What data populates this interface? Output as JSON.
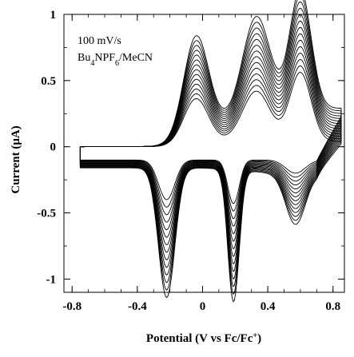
{
  "chart_data": {
    "type": "line",
    "title": "",
    "xlabel": "Potential (V vs Fc/Fc⁺)",
    "ylabel": "Current (μA)",
    "xlim": [
      -0.85,
      0.87
    ],
    "ylim": [
      -1.1,
      1.0
    ],
    "x_ticks": [
      -0.8,
      -0.4,
      0,
      0.4,
      0.8
    ],
    "x_tick_labels": [
      "-0.8",
      "-0.4",
      "0",
      "0.4",
      "0.8"
    ],
    "y_ticks": [
      -1,
      -0.5,
      0,
      0.5,
      1
    ],
    "y_tick_labels": [
      "-1",
      "-0.5",
      "0",
      "0.5",
      "1"
    ],
    "annotations": [
      "100 mV/s",
      "Bu4NPF6/MeCN"
    ],
    "grid": false,
    "legend": "none",
    "series_count": 14,
    "peaks": {
      "anodic": [
        {
          "potential": -0.04,
          "current_first_scan": 0.33,
          "current_last_scan": 0.68
        },
        {
          "potential": 0.33,
          "current_first_scan": 0.38,
          "current_last_scan": 0.78
        },
        {
          "potential": 0.6,
          "current_first_scan": 0.52,
          "current_last_scan": 0.9
        }
      ],
      "cathodic": [
        {
          "potential": -0.22,
          "current_first_scan": -0.3,
          "current_last_scan": -0.98
        },
        {
          "potential": 0.19,
          "current_first_scan": -0.33,
          "current_last_scan": -1.0
        },
        {
          "potential": 0.57,
          "current_first_scan": -0.1,
          "current_last_scan": -0.38
        }
      ]
    },
    "switching_potentials": [
      -0.75,
      0.85
    ]
  }
}
